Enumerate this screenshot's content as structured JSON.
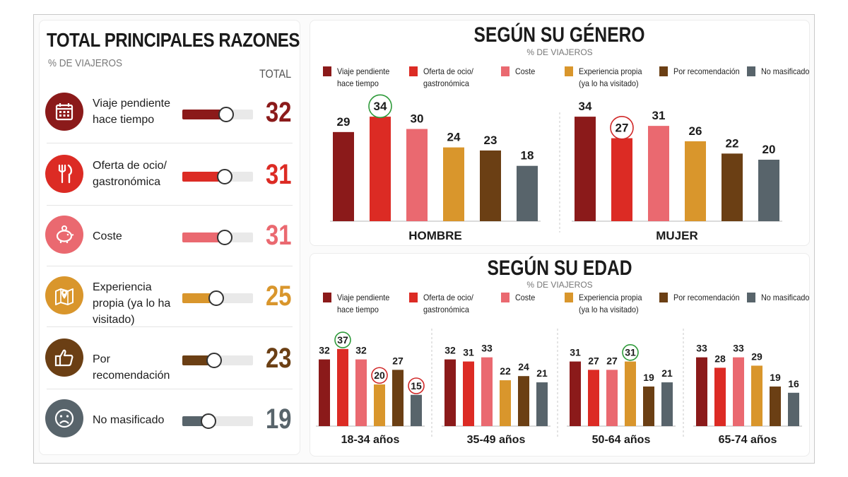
{
  "colors": [
    "#8b1a1a",
    "#dc2b24",
    "#ea6970",
    "#d9962c",
    "#6b3f14",
    "#58646b"
  ],
  "left": {
    "title": "TOTAL PRINCIPALES RAZONES",
    "subtitle": "% DE VIAJEROS",
    "total_label": "TOTAL",
    "items": [
      {
        "label": "Viaje pendiente hace tiempo",
        "value": 32,
        "icon": "calendar-icon",
        "color": "#8b1a1a"
      },
      {
        "label": "Oferta de ocio/ gastronómica",
        "value": 31,
        "icon": "fork-knife-icon",
        "color": "#dc2b24"
      },
      {
        "label": "Coste",
        "value": 31,
        "icon": "piggy-bank-icon",
        "color": "#ea6970"
      },
      {
        "label": "Experiencia propia (ya lo ha visitado)",
        "value": 25,
        "icon": "map-pin-icon",
        "color": "#d9962c"
      },
      {
        "label": "Por recomendación",
        "value": 23,
        "icon": "thumbs-up-icon",
        "color": "#6b3f14"
      },
      {
        "label": "No masificado",
        "value": 19,
        "icon": "sad-face-icon",
        "color": "#58646b"
      }
    ]
  },
  "gender": {
    "title": "SEGÚN SU GÉNERO",
    "subtitle": "% DE VIAJEROS"
  },
  "age": {
    "title": "SEGÚN SU EDAD",
    "subtitle": "% DE VIAJEROS"
  },
  "legend": [
    {
      "line1": "Viaje pendiente",
      "line2": "hace tiempo"
    },
    {
      "line1": "Oferta de ocio/",
      "line2": "gastronómica"
    },
    {
      "line1": "Coste",
      "line2": ""
    },
    {
      "line1": "Experiencia propia",
      "line2": "(ya lo ha visitado)"
    },
    {
      "line1": "Por recomendación",
      "line2": ""
    },
    {
      "line1": "No masificado",
      "line2": ""
    }
  ],
  "chart_data": [
    {
      "type": "bar",
      "title": "TOTAL PRINCIPALES RAZONES",
      "categories": [
        "Viaje pendiente hace tiempo",
        "Oferta de ocio/ gastronómica",
        "Coste",
        "Experiencia propia (ya lo ha visitado)",
        "Por recomendación",
        "No masificado"
      ],
      "values": [
        32,
        31,
        31,
        25,
        23,
        19
      ]
    },
    {
      "type": "bar",
      "title": "SEGÚN SU GÉNERO",
      "categories": [
        "HOMBRE",
        "MUJER"
      ],
      "series": [
        {
          "name": "Viaje pendiente hace tiempo",
          "values": [
            29,
            34
          ]
        },
        {
          "name": "Oferta de ocio/ gastronómica",
          "values": [
            34,
            27
          ]
        },
        {
          "name": "Coste",
          "values": [
            30,
            31
          ]
        },
        {
          "name": "Experiencia propia (ya lo ha visitado)",
          "values": [
            24,
            26
          ]
        },
        {
          "name": "Por recomendación",
          "values": [
            23,
            22
          ]
        },
        {
          "name": "No masificado",
          "values": [
            18,
            20
          ]
        }
      ],
      "highlights": [
        {
          "category": "HOMBRE",
          "series": "Oferta de ocio/ gastronómica",
          "color": "#2e9a3a"
        },
        {
          "category": "MUJER",
          "series": "Oferta de ocio/ gastronómica",
          "color": "#d02828"
        }
      ]
    },
    {
      "type": "bar",
      "title": "SEGÚN SU EDAD",
      "categories": [
        "18-34 años",
        "35-49 años",
        "50-64 años",
        "65-74 años"
      ],
      "series": [
        {
          "name": "Viaje pendiente hace tiempo",
          "values": [
            32,
            32,
            31,
            33
          ]
        },
        {
          "name": "Oferta de ocio/ gastronómica",
          "values": [
            37,
            31,
            27,
            28
          ]
        },
        {
          "name": "Coste",
          "values": [
            32,
            33,
            27,
            33
          ]
        },
        {
          "name": "Experiencia propia (ya lo ha visitado)",
          "values": [
            20,
            22,
            31,
            29
          ]
        },
        {
          "name": "Por recomendación",
          "values": [
            27,
            24,
            19,
            19
          ]
        },
        {
          "name": "No masificado",
          "values": [
            15,
            21,
            21,
            16
          ]
        }
      ],
      "highlights": [
        {
          "category": "18-34 años",
          "series": "Oferta de ocio/ gastronómica",
          "color": "#2e9a3a"
        },
        {
          "category": "18-34 años",
          "series": "Experiencia propia (ya lo ha visitado)",
          "color": "#d02828"
        },
        {
          "category": "18-34 años",
          "series": "No masificado",
          "color": "#d02828"
        },
        {
          "category": "50-64 años",
          "series": "Experiencia propia (ya lo ha visitado)",
          "color": "#2e9a3a"
        }
      ]
    }
  ]
}
